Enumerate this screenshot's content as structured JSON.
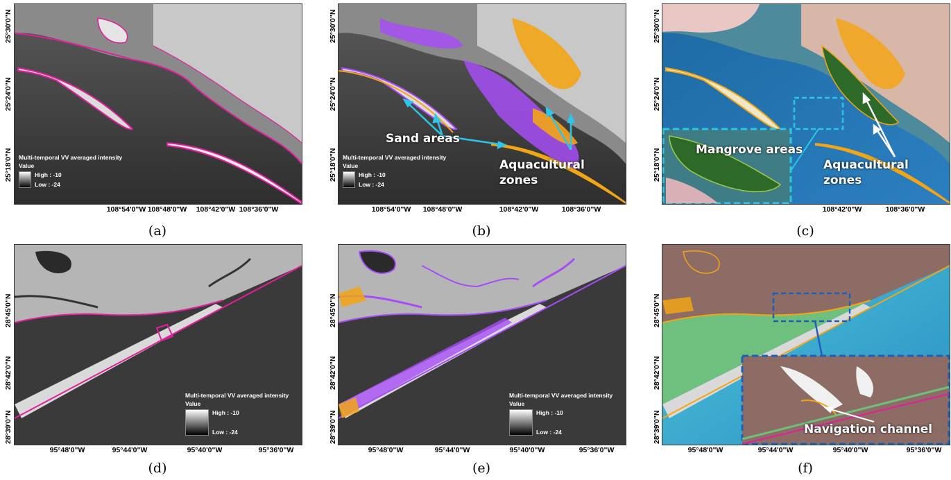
{
  "panels": {
    "a": {
      "caption": "(a)",
      "x_ticks": [
        "108°54'0\"W",
        "108°48'0\"W",
        "108°42'0\"W",
        "108°36'0\"W"
      ],
      "y_ticks": [
        "25°30'0\"N",
        "25°24'0\"N",
        "25°18'0\"N"
      ],
      "legend": {
        "title": "Multi-temporal VV averaged intensity",
        "value_label": "Value",
        "high": "High : -10",
        "low": "Low : -24"
      }
    },
    "b": {
      "caption": "(b)",
      "x_ticks": [
        "108°54'0\"W",
        "108°48'0\"W",
        "108°42'0\"W",
        "108°36'0\"W"
      ],
      "y_ticks": [
        "25°30'0\"N",
        "25°24'0\"N",
        "25°18'0\"N"
      ],
      "legend": {
        "title": "Multi-temporal VV averaged intensity",
        "value_label": "Value",
        "high": "High : -10",
        "low": "Low : -24"
      },
      "annotations": {
        "sand": "Sand areas",
        "aqua_line1": "Aquacultural",
        "aqua_line2": "zones"
      }
    },
    "c": {
      "caption": "(c)",
      "x_ticks": [
        "108°42'0\"W",
        "108°36'0\"W"
      ],
      "y_ticks": [
        "25°30'0\"N",
        "25°24'0\"N",
        "25°18'0\"N"
      ],
      "annotations": {
        "mangrove": "Mangrove areas",
        "aqua_line1": "Aquacultural",
        "aqua_line2": "zones"
      }
    },
    "d": {
      "caption": "(d)",
      "x_ticks": [
        "95°48'0\"W",
        "95°44'0\"W",
        "95°40'0\"W",
        "95°36'0\"W"
      ],
      "y_ticks": [
        "28°45'0\"N",
        "28°42'0\"N",
        "28°39'0\"N"
      ],
      "legend": {
        "title": "Multi-temporal VV averaged intensity",
        "value_label": "Value",
        "high": "High : -10",
        "low": "Low : -24"
      }
    },
    "e": {
      "caption": "(e)",
      "x_ticks": [
        "95°48'0\"W",
        "95°44'0\"W",
        "95°40'0\"W",
        "95°36'0\"W"
      ],
      "y_ticks": [
        "28°45'0\"N",
        "28°42'0\"N",
        "28°39'0\"N"
      ],
      "legend": {
        "title": "Multi-temporal VV averaged intensity",
        "value_label": "Value",
        "high": "High : -10",
        "low": "Low : -24"
      }
    },
    "f": {
      "caption": "(f)",
      "x_ticks": [
        "95°48'0\"W",
        "95°44'0\"W",
        "95°40'0\"W",
        "95°36'0\"W"
      ],
      "y_ticks": [
        "28°45'0\"N",
        "28°42'0\"N",
        "28°39'0\"N"
      ],
      "annotations": {
        "navigation": "Navigation channel"
      }
    }
  },
  "colors": {
    "coastline_magenta": "#e0209a",
    "mask_purple": "#a64df5",
    "aquaculture_orange": "#f2a516",
    "inset_cyan": "#2ec6e8",
    "inset_blue": "#1f5fb8",
    "mangrove_green": "#2d6a2a"
  }
}
